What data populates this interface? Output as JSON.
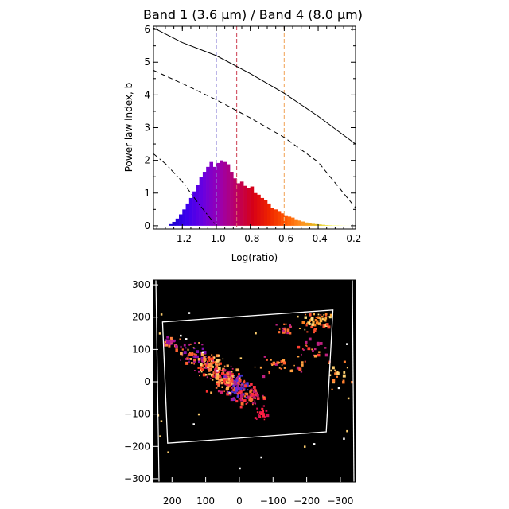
{
  "chart_data": [
    {
      "type": "bar",
      "title": "Band 1 (3.6 μm) / Band 4 (8.0 μm)",
      "xlabel": "Log(ratio)",
      "ylabel": "Power law index, b",
      "xlim": [
        -1.37,
        -0.18
      ],
      "ylim": [
        -0.1,
        6.1
      ],
      "xticks": [
        "-1.2",
        "-1.0",
        "-0.8",
        "-0.6",
        "-0.4",
        "-0.2"
      ],
      "xtick_values": [
        -1.2,
        -1.0,
        -0.8,
        -0.6,
        -0.4,
        -0.2
      ],
      "yticks": [
        "0",
        "1",
        "2",
        "3",
        "4",
        "5",
        "6"
      ],
      "ytick_values": [
        0,
        1,
        2,
        3,
        4,
        5,
        6
      ],
      "histogram": {
        "bin_start": -1.28,
        "bin_width": 0.02,
        "values": [
          0.05,
          0.12,
          0.22,
          0.35,
          0.5,
          0.68,
          0.85,
          1.05,
          1.25,
          1.5,
          1.65,
          1.8,
          1.95,
          1.8,
          1.92,
          2.0,
          1.95,
          1.88,
          1.65,
          1.45,
          1.3,
          1.35,
          1.22,
          1.15,
          1.2,
          1.0,
          0.95,
          0.85,
          0.78,
          0.68,
          0.55,
          0.5,
          0.45,
          0.38,
          0.32,
          0.28,
          0.25,
          0.2,
          0.16,
          0.13,
          0.1,
          0.08,
          0.06,
          0.05,
          0.04,
          0.03,
          0.02,
          0.015,
          0.01,
          0.01,
          0.008,
          0.005,
          0.004,
          0.003
        ],
        "colormap": [
          "#1a00cc",
          "#3a00ee",
          "#6a00e0",
          "#9a00b0",
          "#bb0066",
          "#d60018",
          "#ee2200",
          "#ff5500",
          "#ff9020",
          "#e0c020",
          "#ffff50",
          "#ffffd0"
        ]
      },
      "curves": [
        {
          "style": "solid",
          "x": [
            -1.37,
            -1.2,
            -1.0,
            -0.8,
            -0.6,
            -0.4,
            -0.18
          ],
          "y": [
            6.05,
            5.6,
            5.2,
            4.65,
            4.05,
            3.35,
            2.5
          ]
        },
        {
          "style": "dashed",
          "x": [
            -1.37,
            -1.2,
            -1.0,
            -0.8,
            -0.6,
            -0.4,
            -0.18
          ],
          "y": [
            4.75,
            4.35,
            3.85,
            3.3,
            2.7,
            1.95,
            0.55
          ]
        },
        {
          "style": "dash-dot",
          "x": [
            -1.37,
            -1.3,
            -1.2,
            -1.1,
            -1.0
          ],
          "y": [
            2.2,
            1.9,
            1.35,
            0.65,
            0.0
          ]
        }
      ],
      "markers": [
        {
          "x": -1.0,
          "color": "#8a7fd6"
        },
        {
          "x": -0.88,
          "color": "#d45a6a"
        },
        {
          "x": -0.6,
          "color": "#f4b070"
        }
      ]
    },
    {
      "type": "scatter",
      "xlim": [
        255,
        -345
      ],
      "ylim": [
        -310,
        315
      ],
      "xticks": [
        "200",
        "100",
        "0",
        "−100",
        "−200",
        "−300"
      ],
      "xtick_values": [
        200,
        100,
        0,
        -100,
        -200,
        -300
      ],
      "yticks": [
        "300",
        "200",
        "100",
        "0",
        "−100",
        "−200",
        "−300"
      ],
      "ytick_values": [
        300,
        200,
        100,
        0,
        -100,
        -200,
        -300
      ],
      "background": "#000000",
      "footprint": [
        [
          228,
          185
        ],
        [
          -278,
          222
        ],
        [
          -258,
          -155
        ],
        [
          213,
          -190
        ]
      ],
      "clusters": [
        {
          "x": 210,
          "y": 125,
          "sx": 12,
          "sy": 10,
          "n": 30,
          "palette": [
            "#c0208a",
            "#ff8040",
            "#a010a0"
          ]
        },
        {
          "x": 140,
          "y": 90,
          "sx": 22,
          "sy": 16,
          "n": 60,
          "palette": [
            "#b01890",
            "#ff6030",
            "#ffb050",
            "#8010b0"
          ]
        },
        {
          "x": 90,
          "y": 50,
          "sx": 22,
          "sy": 18,
          "n": 90,
          "palette": [
            "#ff4020",
            "#ff9040",
            "#c02080",
            "#ffd070"
          ]
        },
        {
          "x": 40,
          "y": 10,
          "sx": 22,
          "sy": 20,
          "n": 110,
          "palette": [
            "#ff3030",
            "#ff7040",
            "#d02070",
            "#ffb050"
          ]
        },
        {
          "x": 5,
          "y": -10,
          "sx": 18,
          "sy": 18,
          "n": 80,
          "palette": [
            "#4030d0",
            "#6030e0",
            "#ff5030",
            "#a020a0"
          ]
        },
        {
          "x": -25,
          "y": -40,
          "sx": 18,
          "sy": 14,
          "n": 55,
          "palette": [
            "#ff3040",
            "#ff7030",
            "#c01870"
          ]
        },
        {
          "x": -60,
          "y": -95,
          "sx": 10,
          "sy": 10,
          "n": 25,
          "palette": [
            "#ff2040",
            "#d01050"
          ]
        },
        {
          "x": -225,
          "y": 185,
          "sx": 22,
          "sy": 16,
          "n": 55,
          "palette": [
            "#ff8020",
            "#ffb040",
            "#ff5030",
            "#ffe080"
          ]
        },
        {
          "x": -130,
          "y": 165,
          "sx": 12,
          "sy": 8,
          "n": 20,
          "palette": [
            "#ff7030",
            "#c02080"
          ]
        },
        {
          "x": -120,
          "y": 60,
          "sx": 35,
          "sy": 15,
          "n": 30,
          "palette": [
            "#ff6030",
            "#c02080",
            "#ffa040"
          ]
        },
        {
          "x": -220,
          "y": 100,
          "sx": 25,
          "sy": 20,
          "n": 25,
          "palette": [
            "#ff4030",
            "#c02080",
            "#ffa040"
          ]
        },
        {
          "x": -290,
          "y": 20,
          "sx": 15,
          "sy": 20,
          "n": 18,
          "palette": [
            "#ff8030",
            "#ffd070"
          ]
        }
      ]
    }
  ]
}
